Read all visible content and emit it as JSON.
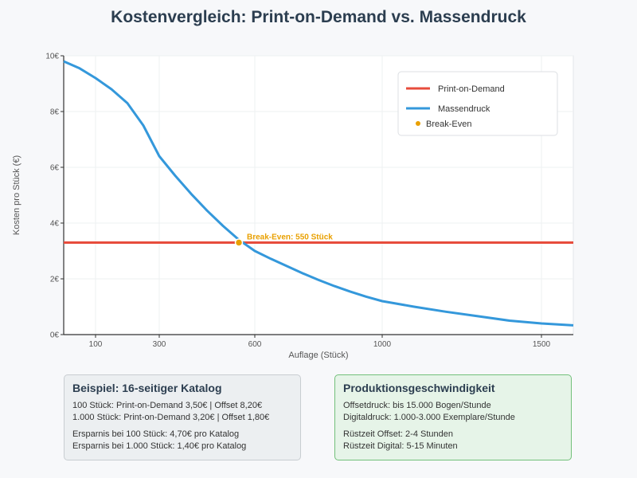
{
  "title": "Kostenvergleich: Print-on-Demand vs. Massendruck",
  "chart_data": {
    "type": "line",
    "title": "Kostenvergleich: Print-on-Demand vs. Massendruck",
    "xlabel": "Auflage (Stück)",
    "ylabel": "Kosten pro Stück (€)",
    "xlim": [
      0,
      1600
    ],
    "ylim": [
      0,
      10
    ],
    "x_ticks": [
      {
        "value": 100,
        "label": "100"
      },
      {
        "value": 300,
        "label": "300"
      },
      {
        "value": 600,
        "label": "600"
      },
      {
        "value": 1000,
        "label": "1000"
      },
      {
        "value": 1500,
        "label": "1500"
      }
    ],
    "y_ticks": [
      {
        "value": 0,
        "label": "0€"
      },
      {
        "value": 2,
        "label": "2€"
      },
      {
        "value": 4,
        "label": "4€"
      },
      {
        "value": 6,
        "label": "6€"
      },
      {
        "value": 8,
        "label": "8€"
      },
      {
        "value": 10,
        "label": "10€"
      }
    ],
    "grid": true,
    "legend_position": "top-right",
    "series": [
      {
        "name": "Print-on-Demand",
        "color": "#e74c3c",
        "points": [
          [
            0,
            3.3
          ],
          [
            1600,
            3.3
          ]
        ]
      },
      {
        "name": "Massendruck",
        "color": "#3498db",
        "points": [
          [
            0,
            9.8
          ],
          [
            50,
            9.55
          ],
          [
            100,
            9.2
          ],
          [
            150,
            8.8
          ],
          [
            200,
            8.3
          ],
          [
            250,
            7.5
          ],
          [
            300,
            6.4
          ],
          [
            350,
            5.7
          ],
          [
            400,
            5.05
          ],
          [
            450,
            4.45
          ],
          [
            500,
            3.9
          ],
          [
            550,
            3.4
          ],
          [
            600,
            3.0
          ],
          [
            650,
            2.72
          ],
          [
            700,
            2.46
          ],
          [
            750,
            2.2
          ],
          [
            800,
            1.96
          ],
          [
            850,
            1.74
          ],
          [
            900,
            1.54
          ],
          [
            950,
            1.36
          ],
          [
            1000,
            1.2
          ],
          [
            1100,
            1.0
          ],
          [
            1200,
            0.82
          ],
          [
            1300,
            0.66
          ],
          [
            1400,
            0.5
          ],
          [
            1500,
            0.4
          ],
          [
            1600,
            0.33
          ]
        ]
      }
    ],
    "break_even": {
      "name": "Break-Even",
      "x": 550,
      "y": 3.3,
      "label": "Break-Even: 550 Stück",
      "color": "#e9a000"
    }
  },
  "info_left": {
    "title": "Beispiel: 16-seitiger Katalog",
    "line1": "100 Stück: Print-on-Demand 3,50€ | Offset 8,20€",
    "line2": "1.000 Stück: Print-on-Demand 3,20€ | Offset 1,80€",
    "line3": "Ersparnis bei 100 Stück: 4,70€ pro Katalog",
    "line4": "Ersparnis bei 1.000 Stück: 1,40€ pro Katalog"
  },
  "info_right": {
    "title": "Produktionsgeschwindigkeit",
    "line1": "Offsetdruck: bis 15.000 Bogen/Stunde",
    "line2": "Digitaldruck: 1.000-3.000 Exemplare/Stunde",
    "line3": "Rüstzeit Offset: 2-4 Stunden",
    "line4": "Rüstzeit Digital: 5-15 Minuten"
  }
}
